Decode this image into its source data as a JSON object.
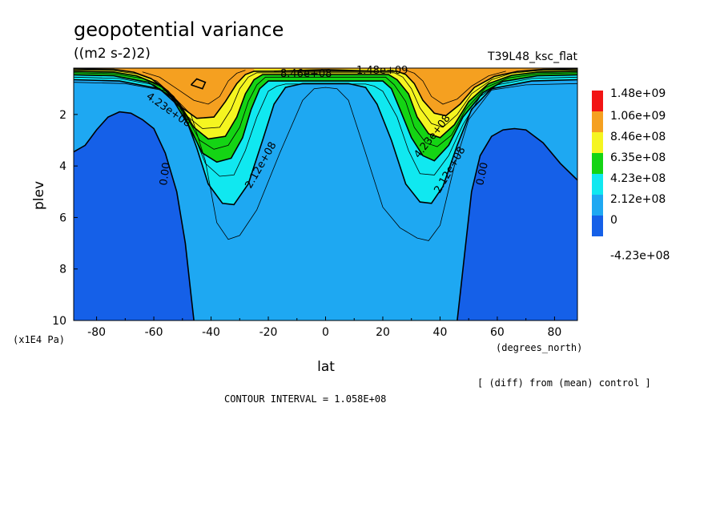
{
  "title": "geopotential variance",
  "units": "((m2 s-2)2)",
  "run_name": "T39L48_ksc_flat",
  "contour_interval": "CONTOUR INTERVAL = 1.058E+08",
  "note": "[ (diff) from (mean) control ]",
  "colors": {
    "level_neg": "#1560e8",
    "level_0": "#1ea8f2",
    "level_1": "#10e8f0",
    "level_2": "#14d414",
    "level_3": "#f5f520",
    "level_4": "#f5a020",
    "level_5": "#f21414"
  },
  "chart_data": {
    "type": "heatmap",
    "title": "geopotential variance",
    "subtitle": "((m2 s-2)2)",
    "xlabel": "lat",
    "xunits": "(degrees_north)",
    "ylabel": "plev",
    "yunits": "(x1E4 Pa)",
    "xlim": [
      -88,
      88
    ],
    "ylim": [
      10,
      0.2
    ],
    "x_ticks": [
      "-80",
      "-60",
      "-40",
      "-20",
      "0",
      "20",
      "40",
      "60",
      "80"
    ],
    "y_ticks": [
      "2",
      "4",
      "6",
      "8",
      "10"
    ],
    "legend": {
      "position": "right",
      "labels": [
        "1.48e+09",
        "1.06e+09",
        "8.46e+08",
        "6.35e+08",
        "4.23e+08",
        "2.12e+08",
        "0",
        "-4.23e+08"
      ]
    },
    "contour_labels": [
      "4.23e+08",
      "0.00",
      "2.12e+08",
      "2.12e+08",
      "4.23e+08",
      "2.12e+08",
      "0.00",
      "8.46e+08",
      "1.06e+09",
      "1.48e+09"
    ],
    "contours": [
      {
        "value": 0,
        "points": [
          [
            -88,
            3.45
          ],
          [
            -84,
            3.2
          ],
          [
            -80,
            2.6
          ],
          [
            -76,
            2.1
          ],
          [
            -72,
            1.9
          ],
          [
            -68,
            1.95
          ],
          [
            -64,
            2.2
          ],
          [
            -60,
            2.55
          ],
          [
            -56,
            3.5
          ],
          [
            -52,
            5
          ],
          [
            -49,
            7
          ],
          [
            -47,
            9
          ],
          [
            -46,
            10
          ]
        ]
      },
      {
        "value": 0,
        "points": [
          [
            46,
            10
          ],
          [
            47,
            9
          ],
          [
            49,
            7
          ],
          [
            51,
            5
          ],
          [
            54,
            3.6
          ],
          [
            58,
            2.85
          ],
          [
            62,
            2.6
          ],
          [
            66,
            2.55
          ],
          [
            70,
            2.6
          ],
          [
            76,
            3.1
          ],
          [
            82,
            3.9
          ],
          [
            88,
            4.55
          ]
        ]
      },
      {
        "value": 105800000.0,
        "points": [
          [
            -88,
            0.75
          ],
          [
            -70,
            0.8
          ],
          [
            -55,
            1.1
          ],
          [
            -47,
            2
          ],
          [
            -42,
            3.8
          ],
          [
            -38,
            6.2
          ],
          [
            -34,
            6.85
          ],
          [
            -30,
            6.7
          ],
          [
            -24,
            5.7
          ],
          [
            -16,
            3.5
          ],
          [
            -8,
            1.45
          ],
          [
            -4,
            1.0
          ],
          [
            0,
            0.95
          ],
          [
            4,
            1.0
          ],
          [
            8,
            1.45
          ],
          [
            14,
            3.5
          ],
          [
            20,
            5.6
          ],
          [
            26,
            6.4
          ],
          [
            32,
            6.8
          ],
          [
            36,
            6.9
          ],
          [
            40,
            6.3
          ],
          [
            45,
            4.0
          ],
          [
            50,
            2.2
          ],
          [
            58,
            1.05
          ],
          [
            70,
            0.85
          ],
          [
            88,
            0.8
          ]
        ]
      },
      {
        "value": 212000000.0,
        "points": [
          [
            -88,
            0.65
          ],
          [
            -72,
            0.7
          ],
          [
            -58,
            1.0
          ],
          [
            -50,
            1.8
          ],
          [
            -45,
            3.3
          ],
          [
            -41,
            4.7
          ],
          [
            -36,
            5.45
          ],
          [
            -32,
            5.5
          ],
          [
            -27,
            4.7
          ],
          [
            -22,
            3.0
          ],
          [
            -18,
            1.6
          ],
          [
            -14,
            0.95
          ],
          [
            -12,
            0.9
          ],
          [
            -10,
            0.85
          ],
          [
            -8,
            0.8
          ],
          [
            8,
            0.8
          ],
          [
            10,
            0.85
          ],
          [
            12,
            0.9
          ],
          [
            14,
            0.95
          ],
          [
            18,
            1.6
          ],
          [
            23,
            3.0
          ],
          [
            28,
            4.7
          ],
          [
            33,
            5.4
          ],
          [
            37,
            5.45
          ],
          [
            41,
            4.8
          ],
          [
            46,
            3.2
          ],
          [
            51,
            1.8
          ],
          [
            58,
            1.0
          ],
          [
            72,
            0.7
          ],
          [
            88,
            0.65
          ]
        ]
      },
      {
        "value": 317000000.0,
        "points": [
          [
            -88,
            0.55
          ],
          [
            -72,
            0.6
          ],
          [
            -60,
            0.85
          ],
          [
            -52,
            1.5
          ],
          [
            -46,
            2.8
          ],
          [
            -42,
            3.9
          ],
          [
            -37,
            4.4
          ],
          [
            -32,
            4.35
          ],
          [
            -28,
            3.4
          ],
          [
            -24,
            2.1
          ],
          [
            -20,
            1.1
          ],
          [
            -17,
            0.9
          ],
          [
            -14,
            0.82
          ],
          [
            14,
            0.82
          ],
          [
            17,
            0.9
          ],
          [
            20,
            1.1
          ],
          [
            25,
            2.1
          ],
          [
            29,
            3.4
          ],
          [
            33,
            4.3
          ],
          [
            38,
            4.35
          ],
          [
            43,
            3.6
          ],
          [
            48,
            2.4
          ],
          [
            54,
            1.3
          ],
          [
            60,
            0.85
          ],
          [
            72,
            0.6
          ],
          [
            88,
            0.55
          ]
        ]
      },
      {
        "value": 423000000.0,
        "points": [
          [
            -88,
            0.46
          ],
          [
            -74,
            0.5
          ],
          [
            -62,
            0.75
          ],
          [
            -54,
            1.3
          ],
          [
            -48,
            2.4
          ],
          [
            -43,
            3.5
          ],
          [
            -38,
            3.85
          ],
          [
            -33,
            3.7
          ],
          [
            -29,
            2.9
          ],
          [
            -26,
            1.8
          ],
          [
            -23,
            1.0
          ],
          [
            -20,
            0.7
          ],
          [
            20,
            0.7
          ],
          [
            23,
            1.0
          ],
          [
            26,
            1.8
          ],
          [
            30,
            2.9
          ],
          [
            34,
            3.6
          ],
          [
            38,
            3.8
          ],
          [
            43,
            3.2
          ],
          [
            48,
            2.1
          ],
          [
            55,
            1.15
          ],
          [
            62,
            0.72
          ],
          [
            74,
            0.5
          ],
          [
            88,
            0.46
          ]
        ]
      },
      {
        "value": 529000000.0,
        "points": [
          [
            -88,
            0.38
          ],
          [
            -74,
            0.42
          ],
          [
            -64,
            0.6
          ],
          [
            -56,
            1.0
          ],
          [
            -49,
            2.0
          ],
          [
            -44,
            3.0
          ],
          [
            -39,
            3.35
          ],
          [
            -34,
            3.2
          ],
          [
            -30,
            2.5
          ],
          [
            -27,
            1.5
          ],
          [
            -24,
            0.85
          ],
          [
            -21,
            0.55
          ],
          [
            21,
            0.55
          ],
          [
            24,
            0.85
          ],
          [
            28,
            1.5
          ],
          [
            31,
            2.5
          ],
          [
            35,
            3.1
          ],
          [
            39,
            3.25
          ],
          [
            44,
            2.8
          ],
          [
            49,
            1.8
          ],
          [
            56,
            0.95
          ],
          [
            64,
            0.58
          ],
          [
            74,
            0.42
          ],
          [
            88,
            0.38
          ]
        ]
      },
      {
        "value": 635000000.0,
        "points": [
          [
            -88,
            0.32
          ],
          [
            -74,
            0.36
          ],
          [
            -66,
            0.5
          ],
          [
            -58,
            0.85
          ],
          [
            -51,
            1.6
          ],
          [
            -46,
            2.5
          ],
          [
            -41,
            2.95
          ],
          [
            -35,
            2.85
          ],
          [
            -31,
            2.1
          ],
          [
            -28,
            1.2
          ],
          [
            -25,
            0.65
          ],
          [
            -22,
            0.45
          ],
          [
            22,
            0.45
          ],
          [
            25,
            0.65
          ],
          [
            29,
            1.2
          ],
          [
            32,
            2.1
          ],
          [
            36,
            2.75
          ],
          [
            40,
            2.9
          ],
          [
            45,
            2.4
          ],
          [
            50,
            1.5
          ],
          [
            57,
            0.8
          ],
          [
            65,
            0.48
          ],
          [
            74,
            0.36
          ],
          [
            88,
            0.32
          ]
        ]
      },
      {
        "value": 740000000.0,
        "points": [
          [
            -88,
            0.27
          ],
          [
            -74,
            0.3
          ],
          [
            -66,
            0.42
          ],
          [
            -59,
            0.7
          ],
          [
            -53,
            1.3
          ],
          [
            -48,
            2.1
          ],
          [
            -43,
            2.55
          ],
          [
            -37,
            2.5
          ],
          [
            -33,
            1.8
          ],
          [
            -30,
            1.0
          ],
          [
            -27,
            0.55
          ],
          [
            -24,
            0.38
          ],
          [
            24,
            0.38
          ],
          [
            27,
            0.55
          ],
          [
            30,
            1.0
          ],
          [
            33,
            1.75
          ],
          [
            37,
            2.35
          ],
          [
            41,
            2.5
          ],
          [
            46,
            2.0
          ],
          [
            51,
            1.2
          ],
          [
            58,
            0.65
          ],
          [
            65,
            0.4
          ],
          [
            74,
            0.3
          ],
          [
            88,
            0.27
          ]
        ]
      },
      {
        "value": 846000000.0,
        "points": [
          [
            -88,
            0.23
          ],
          [
            -74,
            0.25
          ],
          [
            -67,
            0.36
          ],
          [
            -61,
            0.6
          ],
          [
            -55,
            1.1
          ],
          [
            -50,
            1.75
          ],
          [
            -45,
            2.15
          ],
          [
            -39,
            2.1
          ],
          [
            -35,
            1.5
          ],
          [
            -31,
            0.8
          ],
          [
            -28,
            0.45
          ],
          [
            -25,
            0.32
          ],
          [
            25,
            0.32
          ],
          [
            28,
            0.45
          ],
          [
            31,
            0.8
          ],
          [
            34,
            1.45
          ],
          [
            38,
            1.95
          ],
          [
            42,
            2.05
          ],
          [
            47,
            1.6
          ],
          [
            52,
            0.95
          ],
          [
            59,
            0.52
          ],
          [
            67,
            0.33
          ],
          [
            76,
            0.25
          ],
          [
            88,
            0.23
          ]
        ]
      },
      {
        "value": 952000000.0,
        "points": [
          [
            -64,
            0.35
          ],
          [
            -58,
            0.55
          ],
          [
            -52,
            1.0
          ],
          [
            -46,
            1.45
          ],
          [
            -41,
            1.6
          ],
          [
            -37,
            1.3
          ],
          [
            -34,
            0.7
          ],
          [
            -31,
            0.4
          ],
          [
            -28,
            0.28
          ]
        ]
      },
      {
        "value": 952000000.0,
        "points": [
          [
            28,
            0.28
          ],
          [
            31,
            0.4
          ],
          [
            34,
            0.7
          ],
          [
            37,
            1.3
          ],
          [
            41,
            1.6
          ],
          [
            46,
            1.4
          ],
          [
            51,
            0.9
          ],
          [
            57,
            0.5
          ],
          [
            63,
            0.32
          ]
        ]
      },
      {
        "value": 1058000000.0,
        "points": [
          [
            -47,
            0.85
          ],
          [
            -45,
            0.62
          ],
          [
            -42,
            0.75
          ],
          [
            -43,
            1.0
          ],
          [
            -47,
            0.85
          ]
        ]
      },
      {
        "value": 1058000000.0,
        "points": [
          [
            -18,
            0.32
          ],
          [
            -6,
            0.28
          ],
          [
            0,
            0.26
          ],
          [
            6,
            0.28
          ],
          [
            18,
            0.32
          ]
        ]
      }
    ]
  }
}
